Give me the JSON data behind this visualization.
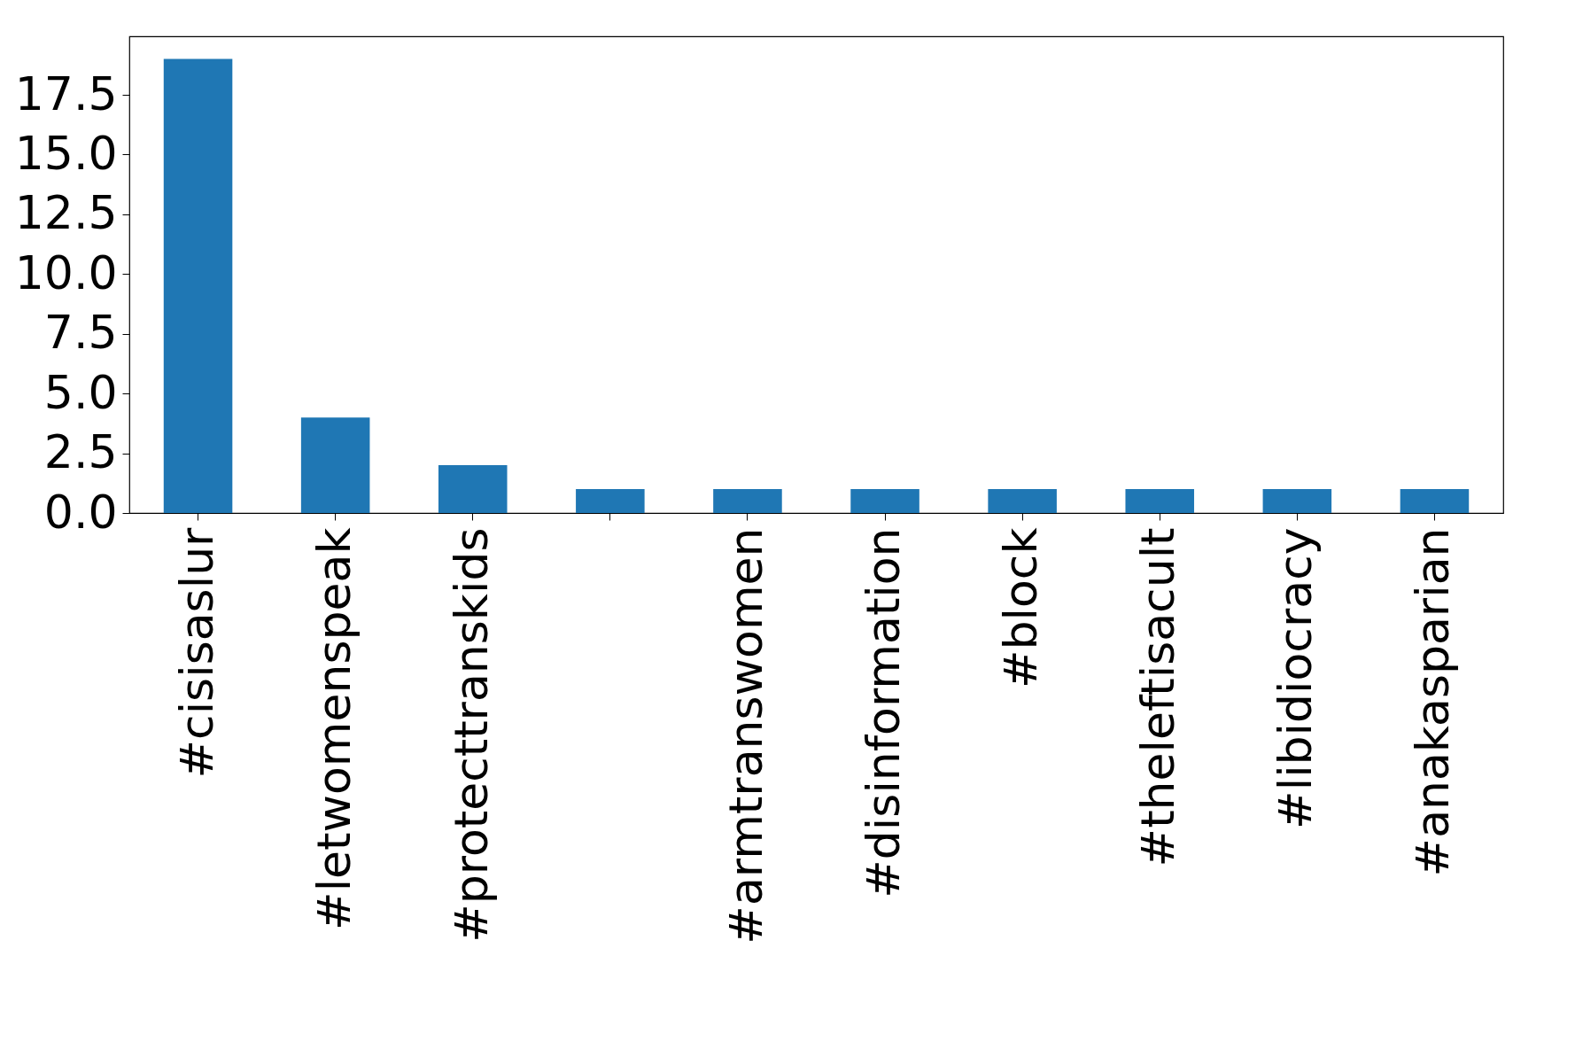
{
  "chart_data": {
    "type": "bar",
    "categories": [
      "#cisisaslur",
      "#letwomenspeak",
      "#protecttranskids",
      null,
      "#armtranswomen",
      "#disinformation",
      "#block",
      "#theleftisacult",
      "#libidiocracy",
      "#anakasparian"
    ],
    "values": [
      19,
      4,
      2,
      1,
      1,
      1,
      1,
      1,
      1,
      1
    ],
    "color": "#1f77b4",
    "ylim": [
      0,
      19.95
    ],
    "yticks": [
      {
        "value": 0,
        "label": "0.0"
      },
      2.5,
      {
        "value": 5,
        "label": "5.0"
      },
      7.5,
      {
        "value": 10,
        "label": "10.0"
      },
      12.5,
      {
        "value": 15,
        "label": "15.0"
      },
      17.5
    ],
    "grid": false
  }
}
